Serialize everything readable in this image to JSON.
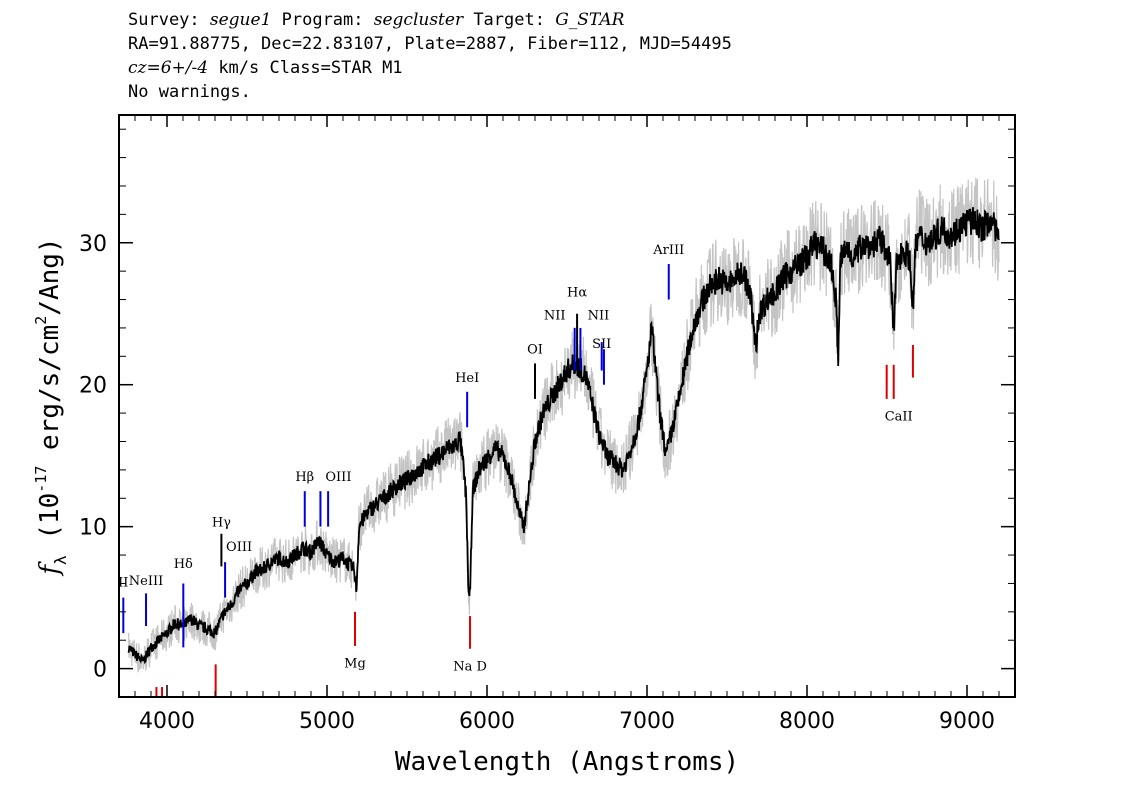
{
  "header": {
    "line1": {
      "k1": "Survey: ",
      "v1": "segue1",
      "k2": " Program: ",
      "v2": "segcluster",
      "k3": " Target: ",
      "v3": "G_STAR"
    },
    "line2": "RA=91.88775, Dec=22.83107, Plate=2887, Fiber=112, MJD=54495",
    "line3": {
      "v1": "cz=6+/-4",
      "k1": " km/s Class=STAR M1"
    },
    "line4": "No warnings."
  },
  "chart_data": {
    "type": "line",
    "xlabel": "Wavelength (Angstroms)",
    "ylabel_prefix": "f",
    "ylabel_sub": "λ",
    "ylabel_main": " (10",
    "ylabel_sup": "-17",
    "ylabel_rest": " erg/s/cm",
    "ylabel_sup2": "2",
    "ylabel_end": "/Ang)",
    "xlim": [
      3700,
      9300
    ],
    "ylim": [
      -2,
      39
    ],
    "xticks": [
      4000,
      5000,
      6000,
      7000,
      8000,
      9000
    ],
    "xtick_labels": [
      "4000",
      "5000",
      "6000",
      "7000",
      "8000",
      "9000"
    ],
    "yticks": [
      0,
      10,
      20,
      30
    ],
    "ytick_labels": [
      "0",
      "10",
      "20",
      "30"
    ],
    "series": [
      {
        "color": "#000000",
        "x": [
          3760,
          3800,
          3850,
          3900,
          3950,
          4000,
          4050,
          4100,
          4150,
          4200,
          4250,
          4300,
          4350,
          4400,
          4450,
          4500,
          4550,
          4600,
          4650,
          4700,
          4750,
          4800,
          4850,
          4900,
          4950,
          5000,
          5050,
          5100,
          5150,
          5170,
          5184,
          5200,
          5250,
          5300,
          5350,
          5400,
          5450,
          5500,
          5550,
          5600,
          5650,
          5700,
          5750,
          5800,
          5830,
          5850,
          5870,
          5884,
          5890,
          5896,
          5910,
          5950,
          6000,
          6050,
          6100,
          6150,
          6200,
          6230,
          6260,
          6300,
          6350,
          6400,
          6450,
          6500,
          6550,
          6580,
          6620,
          6650,
          6700,
          6750,
          6800,
          6850,
          6900,
          6950,
          7000,
          7030,
          7050,
          7080,
          7100,
          7120,
          7150,
          7200,
          7250,
          7300,
          7350,
          7400,
          7450,
          7500,
          7550,
          7600,
          7650,
          7680,
          7700,
          7750,
          7800,
          7850,
          7900,
          7950,
          8000,
          8050,
          8100,
          8150,
          8180,
          8195,
          8210,
          8250,
          8300,
          8350,
          8400,
          8450,
          8500,
          8520,
          8542,
          8560,
          8600,
          8640,
          8662,
          8680,
          8700,
          8750,
          8800,
          8850,
          8900,
          8950,
          9000,
          9050,
          9100,
          9150,
          9200
        ],
        "y": [
          1.5,
          1.0,
          0.5,
          1.5,
          2.0,
          2.5,
          3.2,
          3.0,
          3.5,
          3.0,
          2.8,
          2.5,
          3.8,
          4.5,
          5.5,
          6.0,
          6.8,
          7.0,
          7.5,
          7.8,
          7.5,
          8.0,
          8.5,
          8.2,
          9.0,
          8.0,
          7.5,
          7.8,
          7.2,
          7.0,
          5.5,
          10.0,
          11.0,
          11.5,
          12.0,
          12.5,
          13.0,
          13.3,
          13.8,
          14.2,
          14.6,
          15.0,
          15.5,
          15.7,
          16.2,
          14.5,
          12.0,
          5.5,
          4.8,
          6.0,
          12.5,
          14.0,
          14.8,
          15.5,
          15.0,
          13.5,
          11.0,
          10.0,
          12.5,
          16.0,
          18.0,
          19.0,
          20.0,
          21.0,
          21.5,
          21.2,
          20.5,
          19.0,
          16.5,
          15.0,
          14.5,
          14.0,
          15.5,
          17.5,
          21.0,
          24.0,
          21.5,
          18.0,
          16.5,
          15.0,
          16.5,
          19.0,
          22.0,
          24.5,
          26.0,
          27.0,
          27.5,
          27.0,
          27.5,
          28.0,
          26.0,
          22.5,
          25.0,
          26.0,
          26.5,
          27.5,
          28.0,
          28.5,
          29.0,
          30.0,
          29.5,
          28.5,
          26.0,
          22.0,
          29.0,
          29.5,
          29.0,
          30.0,
          29.8,
          30.2,
          29.5,
          28.5,
          23.5,
          28.5,
          29.5,
          29.0,
          25.5,
          29.8,
          30.5,
          30.0,
          30.5,
          31.0,
          30.5,
          31.0,
          31.5,
          31.5,
          31.0,
          31.8,
          30.0
        ]
      }
    ],
    "line_markers": [
      {
        "label": "OII",
        "display": "II",
        "x": 3727,
        "color": "blue",
        "y0": 2.5,
        "y1": 5.0,
        "label_y": 5.8,
        "side": "top"
      },
      {
        "label": "NeIII",
        "x": 3869,
        "color": "blue",
        "y0": 3.0,
        "y1": 5.3,
        "label_y": 5.9,
        "side": "top"
      },
      {
        "label": "Hδ",
        "x": 4102,
        "color": "blue",
        "y0": 1.5,
        "y1": 6.0,
        "label_y": 7.1,
        "side": "top"
      },
      {
        "label": "Hγ",
        "x": 4340,
        "color": "black",
        "y0": 7.2,
        "y1": 9.5,
        "label_y": 10.0,
        "side": "top"
      },
      {
        "label": "OIII",
        "x": 4363,
        "color": "blue",
        "y0": 5.0,
        "y1": 7.5,
        "label_y": 8.3,
        "side": "top",
        "dx": 14
      },
      {
        "label": "Hβ",
        "x": 4861,
        "color": "blue",
        "y0": 10.0,
        "y1": 12.5,
        "label_y": 13.2,
        "side": "top"
      },
      {
        "label": "OIII",
        "x": 4959,
        "color": "blue",
        "y0": 10.0,
        "y1": 12.5,
        "label_y": 13.2,
        "side": "top",
        "dx": 18
      },
      {
        "label": "",
        "x": 5007,
        "color": "blue",
        "y0": 10.0,
        "y1": 12.5,
        "side": "top"
      },
      {
        "label": "HeI",
        "x": 5876,
        "color": "blue",
        "y0": 17.0,
        "y1": 19.5,
        "label_y": 20.2,
        "side": "top"
      },
      {
        "label": "OI",
        "x": 6300,
        "color": "black",
        "y0": 19.0,
        "y1": 21.5,
        "label_y": 22.2,
        "side": "top"
      },
      {
        "label": "NII",
        "x": 6548,
        "color": "blue",
        "y0": 21.0,
        "y1": 24.0,
        "label_y": 24.6,
        "side": "top",
        "dx": -20
      },
      {
        "label": "Hα",
        "x": 6563,
        "color": "black",
        "y0": 21.5,
        "y1": 25.0,
        "label_y": 26.2,
        "side": "top"
      },
      {
        "label": "NII",
        "x": 6584,
        "color": "blue",
        "y0": 21.0,
        "y1": 24.0,
        "label_y": 24.6,
        "side": "top",
        "dx": 18
      },
      {
        "label": "SII",
        "x": 6717,
        "color": "blue",
        "y0": 21.0,
        "y1": 23.0,
        "label_y": 22.6,
        "side": "top",
        "dx": 0
      },
      {
        "label": "",
        "x": 6731,
        "color": "blue",
        "y0": 20.0,
        "y1": 22.5,
        "side": "top"
      },
      {
        "label": "ArIII",
        "x": 7136,
        "color": "blue",
        "y0": 26.0,
        "y1": 28.5,
        "label_y": 29.2,
        "side": "top"
      },
      {
        "label": "",
        "x": 3934,
        "color": "red",
        "y0": -1.3,
        "y1": -2.0,
        "side": "bottom"
      },
      {
        "label": "",
        "x": 3969,
        "color": "red",
        "y0": -1.3,
        "y1": -2.0,
        "side": "bottom"
      },
      {
        "label": "",
        "x": 4304,
        "color": "red",
        "y0": 0.3,
        "y1": -2.0,
        "side": "bottom"
      },
      {
        "label": "Mg",
        "x": 5175,
        "color": "red",
        "y0": 4.0,
        "y1": 1.6,
        "label_y": 0.5,
        "side": "bottom"
      },
      {
        "label": "Na D",
        "x": 5894,
        "color": "red",
        "y0": 3.7,
        "y1": 1.4,
        "label_y": 0.3,
        "side": "bottom"
      },
      {
        "label": "CaII",
        "x": 8498,
        "color": "red",
        "y0": 21.4,
        "y1": 19.0,
        "label_y": 17.9,
        "side": "bottom",
        "dx": 12
      },
      {
        "label": "",
        "x": 8542,
        "color": "red",
        "y0": 21.4,
        "y1": 19.0,
        "side": "bottom"
      },
      {
        "label": "",
        "x": 8662,
        "color": "red",
        "y0": 22.8,
        "y1": 20.5,
        "side": "bottom"
      }
    ]
  }
}
